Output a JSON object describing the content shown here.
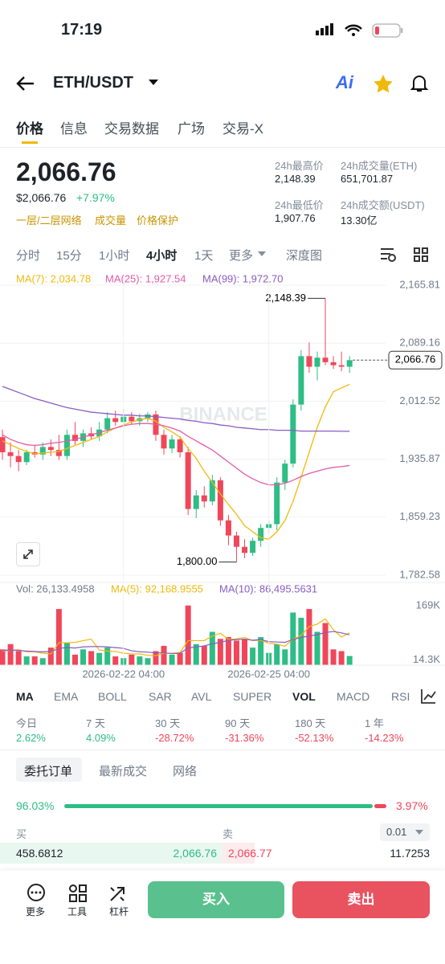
{
  "status_bar": {
    "time": "17:19"
  },
  "header": {
    "pair": "ETH/USDT",
    "ai": "Ai"
  },
  "tabs": [
    "价格",
    "信息",
    "交易数据",
    "广场",
    "交易-X"
  ],
  "price": {
    "last": "2,066.76",
    "usd": "$2,066.76",
    "change": "+7.97%",
    "links": [
      "一层/二层网络",
      "成交量",
      "价格保护"
    ]
  },
  "stats": [
    [
      "24h最高价",
      "2,148.39"
    ],
    [
      "24h成交量(ETH)",
      "651,701.87"
    ],
    [
      "24h最低价",
      "1,907.76"
    ],
    [
      "24h成交额(USDT)",
      "13.30亿"
    ]
  ],
  "intervals": [
    "分时",
    "15分",
    "1小时",
    "4小时",
    "1天",
    "更多",
    "深度图"
  ],
  "chart_data": [
    {
      "type": "candlestick",
      "categories": [
        null,
        null,
        null,
        null,
        null,
        null,
        null,
        null,
        null,
        null,
        null,
        null,
        null,
        null,
        null,
        null,
        null,
        null,
        null,
        null,
        null,
        null,
        null,
        null,
        null,
        null,
        null,
        null,
        null,
        null,
        null,
        null,
        null,
        null,
        null,
        null,
        null,
        null,
        null,
        null,
        null,
        null,
        null,
        null
      ],
      "open": [
        1965,
        1945,
        1940,
        1932,
        1945,
        1942,
        1952,
        1948,
        1940,
        1968,
        1960,
        1970,
        1966,
        1975,
        1990,
        1985,
        1992,
        1986,
        1990,
        1995,
        1968,
        1950,
        1962,
        1945,
        1870,
        1888,
        1880,
        1908,
        1855,
        1835,
        1820,
        1812,
        1828,
        1845,
        1850,
        1905,
        1930,
        2008,
        2072,
        2058,
        2070,
        2064,
        2060,
        2058
      ],
      "high": [
        1975,
        1958,
        1948,
        1948,
        1955,
        1958,
        1962,
        1968,
        1975,
        1985,
        1975,
        1978,
        1985,
        1998,
        2000,
        2002,
        1998,
        1996,
        1998,
        2000,
        1975,
        1968,
        1966,
        1952,
        1895,
        1900,
        1915,
        1912,
        1862,
        1840,
        1830,
        1832,
        1850,
        1855,
        1912,
        1935,
        2015,
        2080,
        2090,
        2078,
        2148.39,
        2072,
        2078,
        2072
      ],
      "low": [
        1935,
        1925,
        1920,
        1928,
        1938,
        1935,
        1940,
        1935,
        1935,
        1955,
        1952,
        1962,
        1960,
        1970,
        1980,
        1978,
        1982,
        1980,
        1985,
        1960,
        1942,
        1944,
        1938,
        1862,
        1858,
        1872,
        1875,
        1848,
        1822,
        1800,
        1805,
        1808,
        1820,
        1838,
        1842,
        1895,
        1925,
        2000,
        2050,
        2040,
        2060,
        2055,
        2052,
        2050
      ],
      "close": [
        1945,
        1940,
        1932,
        1945,
        1942,
        1952,
        1948,
        1940,
        1968,
        1960,
        1970,
        1966,
        1975,
        1990,
        1985,
        1992,
        1986,
        1990,
        1995,
        1968,
        1950,
        1962,
        1945,
        1870,
        1888,
        1880,
        1908,
        1855,
        1835,
        1820,
        1812,
        1828,
        1845,
        1850,
        1905,
        1930,
        2008,
        2072,
        2058,
        2070,
        2064,
        2060,
        2058,
        2066.76
      ],
      "up_color": "#2ebd85",
      "down_color": "#f0465a",
      "series": [
        {
          "name": "MA(7): 2,034.78",
          "color": "#f0b90b",
          "values": [
            1960,
            1955,
            1950,
            1946,
            1943,
            1944,
            1945,
            1946,
            1950,
            1954,
            1958,
            1962,
            1966,
            1972,
            1977,
            1981,
            1985,
            1988,
            1990,
            1986,
            1978,
            1972,
            1965,
            1950,
            1937,
            1920,
            1905,
            1890,
            1876,
            1863,
            1848,
            1840,
            1832,
            1830,
            1840,
            1855,
            1880,
            1912,
            1945,
            1978,
            2005,
            2025,
            2030,
            2034.78
          ]
        },
        {
          "name": "MA(25): 1,927.54",
          "color": "#e15ca8",
          "values": [
            1968,
            1962,
            1958,
            1955,
            1954,
            1955,
            1957,
            1958,
            1960,
            1962,
            1965,
            1968,
            1971,
            1974,
            1977,
            1980,
            1982,
            1983,
            1983,
            1982,
            1980,
            1977,
            1973,
            1966,
            1960,
            1954,
            1948,
            1940,
            1932,
            1924,
            1916,
            1910,
            1905,
            1902,
            1902,
            1904,
            1908,
            1913,
            1917,
            1920,
            1923,
            1925,
            1926,
            1927.54
          ]
        },
        {
          "name": "MA(99): 1,972.70",
          "color": "#8a5cc2",
          "values": [
            2032,
            2028,
            2024,
            2020,
            2016,
            2013,
            2010,
            2007,
            2004,
            2002,
            2000,
            1998,
            1997,
            1996,
            1995,
            1994,
            1994,
            1993,
            1993,
            1992,
            1991,
            1990,
            1989,
            1987,
            1986,
            1984,
            1983,
            1981,
            1980,
            1978,
            1977,
            1976,
            1975,
            1975,
            1974,
            1974,
            1974,
            1973,
            1973,
            1973,
            1973,
            1973,
            1972.7,
            1972.7
          ]
        }
      ],
      "ylim": [
        1773,
        2176.4
      ],
      "yticks": [
        {
          "value": 2165.81,
          "label": "2,165.81"
        },
        {
          "value": 2089.16,
          "label": "2,089.16"
        },
        {
          "value": 2012.52,
          "label": "2,012.52"
        },
        {
          "value": 1935.87,
          "label": "1,935.87"
        },
        {
          "value": 1859.23,
          "label": "1,859.23"
        },
        {
          "value": 1782.58,
          "label": "1,782.58"
        }
      ],
      "annotations": [
        {
          "text": "2,148.39",
          "value": 2148.39
        },
        {
          "text": "1,800.00",
          "value": 1800
        }
      ],
      "last_price": {
        "text": "2,066.76",
        "value": 2066.76
      },
      "watermark": "BINANCE",
      "grid": true
    },
    {
      "type": "bar",
      "title": "Vol: 26,133.4958",
      "categories": [
        null,
        null,
        null,
        null,
        null,
        null,
        null,
        null,
        null,
        null,
        null,
        null,
        null,
        null,
        null,
        "2026-02-22 04:00",
        null,
        null,
        null,
        null,
        null,
        null,
        null,
        null,
        null,
        null,
        null,
        null,
        null,
        null,
        null,
        null,
        null,
        "2026-02-25 04:00",
        null,
        null,
        null,
        null,
        null,
        null,
        null,
        null,
        null,
        null
      ],
      "values": [
        45000,
        60000,
        40000,
        25000,
        25000,
        20000,
        50000,
        160000,
        65000,
        30000,
        45000,
        40000,
        35000,
        50000,
        25000,
        20000,
        30000,
        25000,
        20000,
        40000,
        55000,
        30000,
        35000,
        170000,
        60000,
        55000,
        95000,
        75000,
        80000,
        70000,
        75000,
        50000,
        80000,
        35000,
        60000,
        45000,
        150000,
        135000,
        160000,
        95000,
        120000,
        45000,
        40000,
        26133.4958
      ],
      "series": [
        {
          "name": "MA(5): 92,168.9555",
          "color": "#f0b90b",
          "values": [
            40000,
            42000,
            44000,
            38000,
            38000,
            34000,
            32000,
            64000,
            64000,
            65000,
            70000,
            74000,
            43000,
            40000,
            39000,
            34000,
            32000,
            32000,
            28000,
            27000,
            34000,
            34000,
            36000,
            70000,
            70000,
            70000,
            83000,
            91000,
            73000,
            75000,
            79000,
            70000,
            71000,
            62000,
            60000,
            54000,
            74000,
            85000,
            110000,
            117000,
            132000,
            101000,
            80000,
            92168.9555
          ]
        },
        {
          "name": "MA(10): 86,495.5631",
          "color": "#8a5cc2",
          "values": [
            42000,
            43000,
            42000,
            40000,
            39000,
            38000,
            38000,
            48000,
            50000,
            49000,
            52000,
            53000,
            53000,
            52000,
            50000,
            48000,
            41000,
            38000,
            37000,
            35000,
            35000,
            33000,
            34000,
            49000,
            52000,
            55000,
            61000,
            65000,
            71000,
            73000,
            74000,
            71000,
            73000,
            67000,
            66000,
            65000,
            73000,
            79000,
            83000,
            87000,
            93000,
            96000,
            92000,
            86495.5631
          ]
        }
      ],
      "ylim": [
        0,
        190000
      ],
      "yticks": [
        {
          "value": 169000,
          "label": "169K"
        },
        {
          "value": 14300,
          "label": "14.3K"
        }
      ]
    }
  ],
  "indicators": [
    "MA",
    "EMA",
    "BOLL",
    "SAR",
    "AVL",
    "SUPER",
    "VOL",
    "MACD",
    "RSI"
  ],
  "performance": [
    [
      "今日",
      "2.62%"
    ],
    [
      "7 天",
      "4.09%"
    ],
    [
      "30 天",
      "-28.72%"
    ],
    [
      "90 天",
      "-31.36%"
    ],
    [
      "180 天",
      "-52.13%"
    ],
    [
      "1 年",
      "-14.23%"
    ]
  ],
  "order_tabs": [
    "委托订单",
    "最新成交",
    "网络"
  ],
  "order_book": {
    "buy_ratio": "96.03%",
    "sell_ratio": "3.97%",
    "buy": "买",
    "sell": "卖",
    "step": "0.01",
    "rows": [
      [
        "458.6812",
        "2,066.76",
        "2,066.77",
        "11.7253"
      ]
    ]
  },
  "bottom": {
    "tools": [
      "更多",
      "工具",
      "杠杆"
    ],
    "buy": "买入",
    "sell": "卖出"
  }
}
